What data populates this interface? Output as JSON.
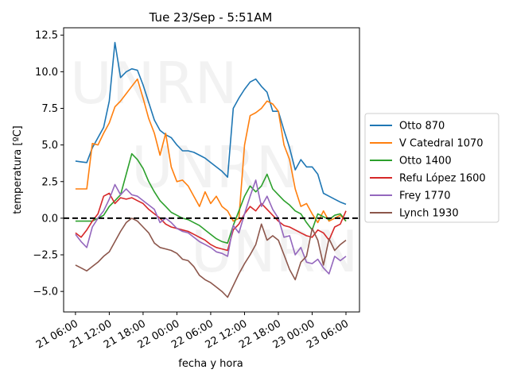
{
  "chart_data": {
    "type": "line",
    "title": "Tue 23/Sep - 5:51AM",
    "xlabel": "fecha y hora",
    "ylabel": "temperatura [ºC]",
    "watermark": "UNRN",
    "x_unit": "hours since 21 06:00",
    "xlim": [
      -2.1,
      50.4
    ],
    "ylim": [
      -6.4,
      13.0
    ],
    "xticks": [
      {
        "value": 0,
        "label": "21 06:00"
      },
      {
        "value": 6,
        "label": "21 12:00"
      },
      {
        "value": 12,
        "label": "21 18:00"
      },
      {
        "value": 18,
        "label": "22 00:00"
      },
      {
        "value": 24,
        "label": "22 06:00"
      },
      {
        "value": 30,
        "label": "22 12:00"
      },
      {
        "value": 36,
        "label": "22 18:00"
      },
      {
        "value": 42,
        "label": "23 00:00"
      },
      {
        "value": 48,
        "label": "23 06:00"
      }
    ],
    "yticks": [
      {
        "value": -5,
        "label": "−5.0"
      },
      {
        "value": -2.5,
        "label": "−2.5"
      },
      {
        "value": 0,
        "label": "0.0"
      },
      {
        "value": 2.5,
        "label": "2.5"
      },
      {
        "value": 5,
        "label": "5.0"
      },
      {
        "value": 7.5,
        "label": "7.5"
      },
      {
        "value": 10,
        "label": "10.0"
      },
      {
        "value": 12.5,
        "label": "12.5"
      }
    ],
    "reference_line": {
      "y": 0,
      "style": "dashed",
      "color": "#000000"
    },
    "legend_position": "right-outside",
    "series": [
      {
        "name": "Otto 870",
        "color": "#1f77b4",
        "values": [
          3.9,
          3.85,
          3.8,
          4.8,
          5.5,
          6.2,
          8.0,
          12.0,
          9.6,
          10.0,
          10.2,
          10.1,
          9.1,
          7.9,
          6.7,
          6.0,
          5.7,
          5.5,
          5.0,
          4.6,
          4.6,
          4.5,
          4.3,
          4.1,
          3.8,
          3.5,
          3.2,
          2.8,
          7.5,
          8.2,
          8.8,
          9.3,
          9.5,
          9.0,
          8.6,
          7.3,
          7.3,
          6.0,
          4.8,
          3.3,
          4.0,
          3.5,
          3.5,
          3.0,
          1.7,
          1.5,
          1.3,
          1.1,
          0.95
        ]
      },
      {
        "name": "V Catedral 1070",
        "color": "#ff7f0e",
        "values": [
          2.0,
          2.0,
          2.0,
          5.1,
          5.0,
          5.8,
          6.5,
          7.6,
          8.0,
          8.5,
          9.0,
          9.5,
          8.2,
          6.8,
          5.8,
          4.3,
          5.8,
          3.5,
          2.5,
          2.6,
          2.2,
          1.5,
          0.8,
          1.8,
          1.0,
          1.5,
          0.8,
          0.5,
          -0.2,
          0.0,
          5.0,
          7.0,
          7.2,
          7.5,
          8.0,
          7.8,
          7.3,
          5.0,
          4.0,
          2.0,
          0.8,
          1.0,
          0.3,
          -0.3,
          0.5,
          -0.2,
          0.0,
          0.2,
          -0.2
        ]
      },
      {
        "name": "Otto 1400",
        "color": "#2ca02c",
        "values": [
          -0.2,
          -0.2,
          -0.2,
          -0.2,
          0.0,
          0.2,
          0.8,
          1.2,
          1.6,
          3.0,
          4.4,
          4.0,
          3.4,
          2.5,
          1.8,
          1.2,
          0.8,
          0.4,
          0.2,
          0.0,
          -0.1,
          -0.3,
          -0.5,
          -0.8,
          -1.1,
          -1.4,
          -1.6,
          -1.7,
          -0.5,
          0.5,
          1.5,
          2.2,
          1.8,
          2.2,
          3.0,
          2.0,
          1.6,
          1.2,
          0.9,
          0.5,
          0.3,
          -0.3,
          -0.8,
          0.3,
          0.1,
          -0.1,
          0.2,
          0.3,
          -0.2
        ]
      },
      {
        "name": "Refu López 1600",
        "color": "#d62728",
        "values": [
          -1.0,
          -1.3,
          -0.8,
          -0.2,
          0.3,
          1.5,
          1.7,
          1.0,
          1.4,
          1.3,
          1.4,
          1.2,
          1.0,
          0.6,
          0.3,
          0.0,
          -0.4,
          -0.6,
          -0.7,
          -0.8,
          -0.9,
          -1.1,
          -1.3,
          -1.5,
          -1.8,
          -2.0,
          -2.1,
          -2.2,
          -0.8,
          -0.4,
          0.3,
          0.8,
          0.5,
          1.0,
          0.6,
          0.2,
          -0.2,
          -0.5,
          -0.6,
          -0.8,
          -1.0,
          -1.2,
          -1.3,
          -0.8,
          -1.0,
          -1.5,
          -0.6,
          -0.4,
          0.5
        ]
      },
      {
        "name": "Frey 1770",
        "color": "#9467bd",
        "values": [
          -1.1,
          -1.6,
          -2.0,
          -0.6,
          0.0,
          0.5,
          1.3,
          2.3,
          1.6,
          2.0,
          1.6,
          1.5,
          1.2,
          0.9,
          0.6,
          -0.3,
          0.0,
          -0.3,
          -0.7,
          -0.9,
          -1.0,
          -1.3,
          -1.6,
          -1.8,
          -2.0,
          -2.3,
          -2.4,
          -2.6,
          -0.5,
          -1.0,
          0.3,
          1.5,
          2.6,
          0.8,
          1.5,
          0.6,
          0.0,
          -1.3,
          -1.2,
          -2.5,
          -2.0,
          -3.0,
          -3.1,
          -2.8,
          -3.4,
          -3.8,
          -2.6,
          -2.9,
          -2.6
        ]
      },
      {
        "name": "Lynch 1930",
        "color": "#8c564b",
        "values": [
          -3.2,
          -3.4,
          -3.6,
          -3.3,
          -3.0,
          -2.6,
          -2.3,
          -1.6,
          -0.9,
          -0.3,
          0.0,
          -0.2,
          -0.6,
          -1.0,
          -1.7,
          -2.0,
          -2.1,
          -2.2,
          -2.4,
          -2.8,
          -2.9,
          -3.3,
          -3.9,
          -4.2,
          -4.4,
          -4.7,
          -5.0,
          -5.4,
          -4.6,
          -3.8,
          -3.1,
          -2.5,
          -1.8,
          -0.4,
          -1.5,
          -1.2,
          -1.5,
          -2.5,
          -3.5,
          -4.2,
          -3.0,
          -2.6,
          -0.7,
          -1.5,
          -3.2,
          -1.4,
          -2.2,
          -1.8,
          -1.5
        ]
      }
    ]
  }
}
